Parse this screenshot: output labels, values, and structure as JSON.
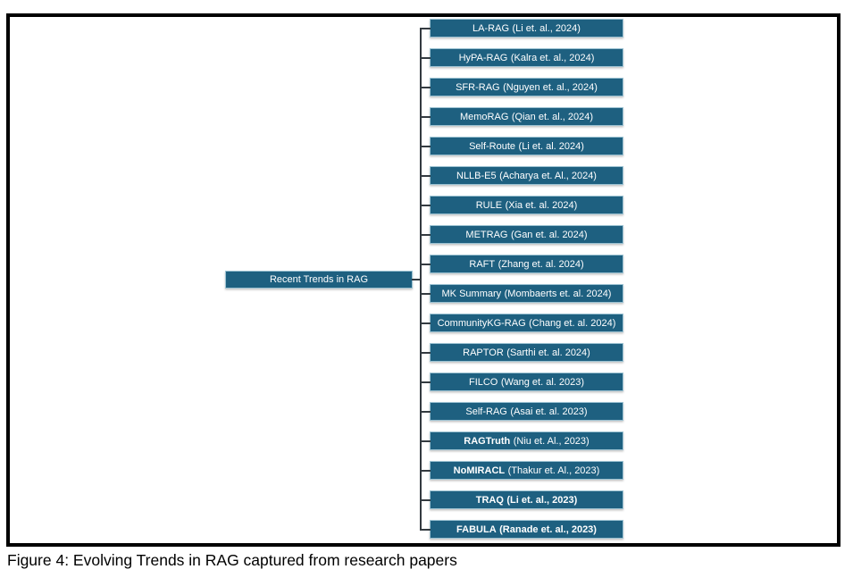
{
  "figure": {
    "caption": "Figure 4: Evolving Trends in RAG captured from research papers"
  },
  "colors": {
    "node_fill": "#1E6080",
    "node_border": "#9DC3D3",
    "node_text": "#FFFFFF",
    "connector": "#333a40",
    "frame_border": "#000000"
  },
  "tree": {
    "root": {
      "label": "Recent Trends in RAG"
    },
    "children": [
      {
        "name": "LA-RAG",
        "cite": "(Li et. al., 2024)",
        "name_bold": false,
        "cite_bold": false
      },
      {
        "name": "HyPA-RAG",
        "cite": "(Kalra et. al., 2024)",
        "name_bold": false,
        "cite_bold": false
      },
      {
        "name": "SFR-RAG",
        "cite": "(Nguyen et. al., 2024)",
        "name_bold": false,
        "cite_bold": false
      },
      {
        "name": "MemoRAG",
        "cite": "(Qian et. al., 2024)",
        "name_bold": false,
        "cite_bold": false
      },
      {
        "name": "Self-Route",
        "cite": "(Li et. al. 2024)",
        "name_bold": false,
        "cite_bold": false
      },
      {
        "name": "NLLB-E5",
        "cite": "(Acharya et. Al., 2024)",
        "name_bold": false,
        "cite_bold": false
      },
      {
        "name": "RULE",
        "cite": "(Xia et. al. 2024)",
        "name_bold": false,
        "cite_bold": false
      },
      {
        "name": "METRAG",
        "cite": "(Gan et. al. 2024)",
        "name_bold": false,
        "cite_bold": false
      },
      {
        "name": "RAFT",
        "cite": "(Zhang et. al. 2024)",
        "name_bold": false,
        "cite_bold": false
      },
      {
        "name": "MK Summary",
        "cite": "(Mombaerts et. al. 2024)",
        "name_bold": false,
        "cite_bold": false
      },
      {
        "name": "CommunityKG-RAG",
        "cite": "(Chang et. al. 2024)",
        "name_bold": false,
        "cite_bold": false
      },
      {
        "name": "RAPTOR",
        "cite": "(Sarthi et. al. 2024)",
        "name_bold": false,
        "cite_bold": false
      },
      {
        "name": "FILCO",
        "cite": "(Wang et. al. 2023)",
        "name_bold": false,
        "cite_bold": false
      },
      {
        "name": "Self-RAG",
        "cite": "(Asai et. al. 2023)",
        "name_bold": false,
        "cite_bold": false
      },
      {
        "name": "RAGTruth",
        "cite": "(Niu et. Al., 2023)",
        "name_bold": true,
        "cite_bold": false
      },
      {
        "name": "NoMIRACL",
        "cite": "(Thakur et. Al., 2023)",
        "name_bold": true,
        "cite_bold": false
      },
      {
        "name": "TRAQ",
        "cite": "(Li et. al., 2023)",
        "name_bold": true,
        "cite_bold": true
      },
      {
        "name": "FABULA",
        "cite": "(Ranade et. al., 2023)",
        "name_bold": true,
        "cite_bold": true
      }
    ]
  }
}
